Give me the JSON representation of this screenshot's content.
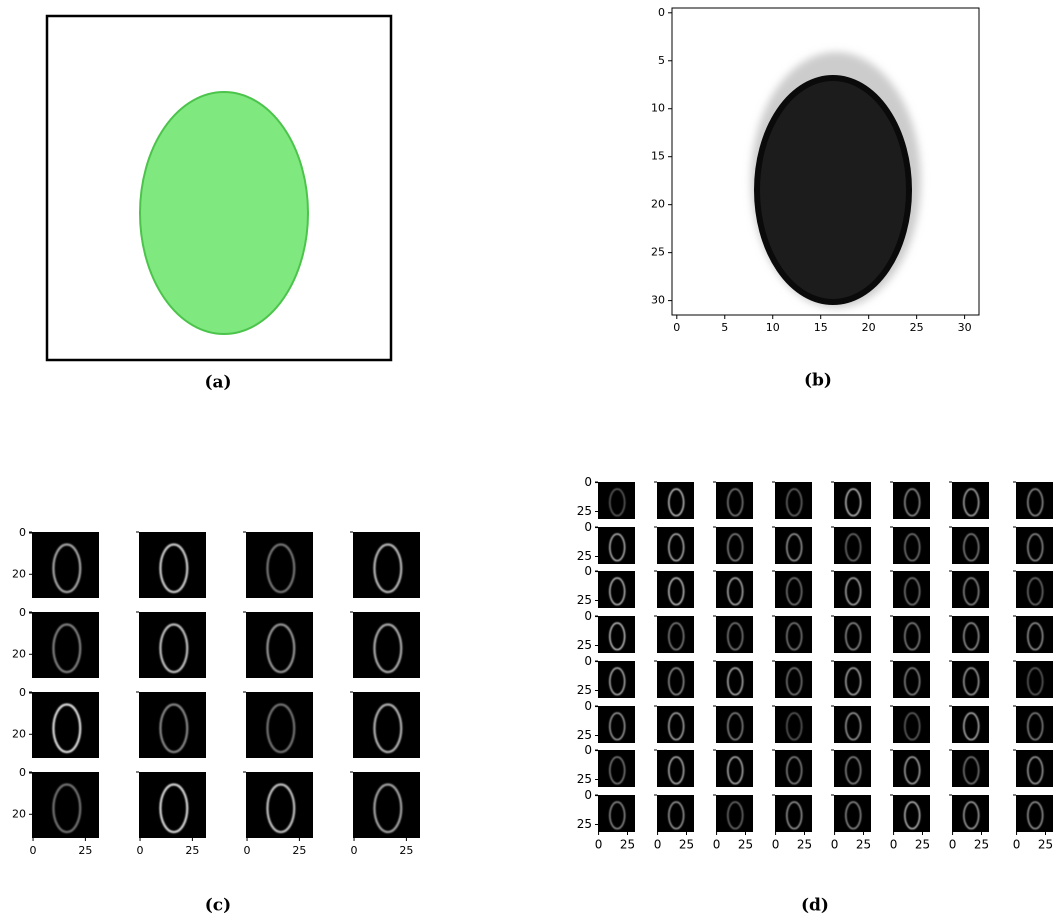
{
  "panels": [
    {
      "caption": "(a)"
    },
    {
      "caption": "(b)",
      "xticks": [
        0,
        5,
        10,
        15,
        20,
        25,
        30
      ],
      "yticks": [
        0,
        5,
        10,
        15,
        20,
        25,
        30
      ]
    },
    {
      "caption": "(c)",
      "xticks": [
        0,
        25
      ],
      "yticks": [
        0,
        20
      ]
    },
    {
      "caption": "(d)",
      "xticks": [
        0,
        25
      ],
      "yticks": [
        0,
        25
      ]
    }
  ]
}
